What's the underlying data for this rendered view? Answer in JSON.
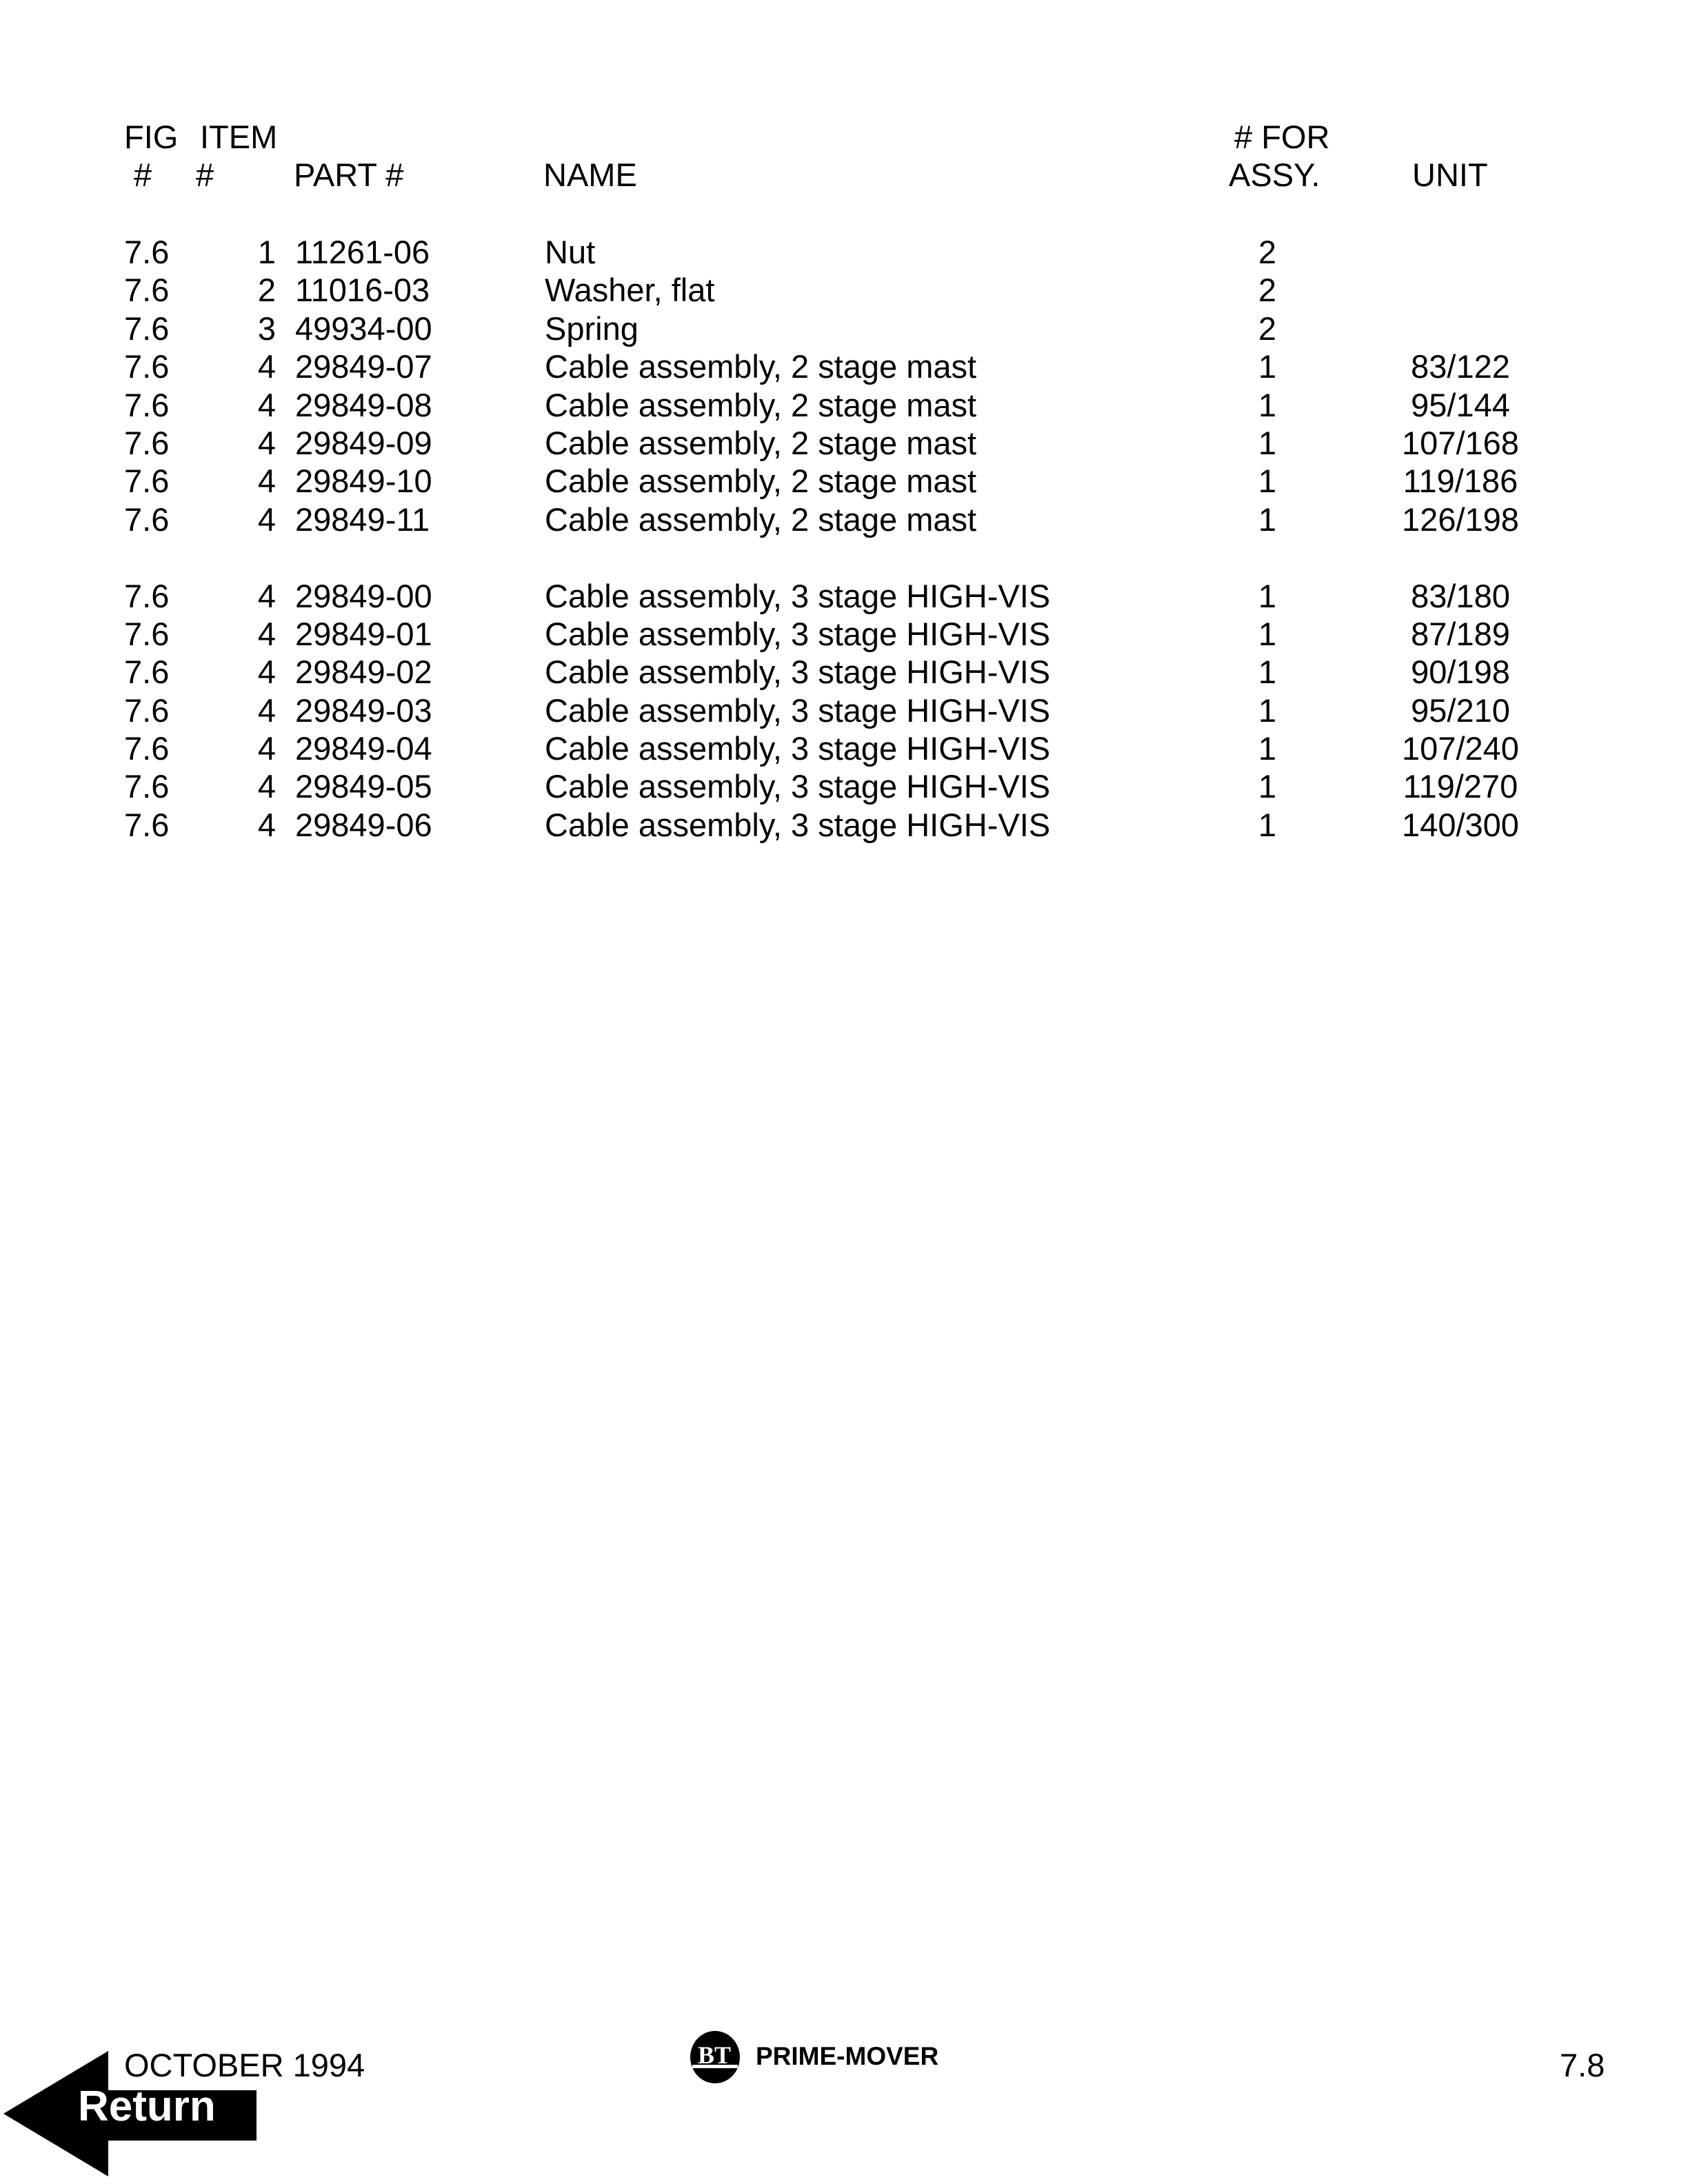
{
  "header": {
    "fig_line1": "FIG",
    "fig_line2": "#",
    "item_line1": "ITEM",
    "item_line2": "#",
    "part": "PART #",
    "name": "NAME",
    "qty_line1": "# FOR",
    "qty_line2": "ASSY.",
    "unit": "UNIT"
  },
  "groups": [
    [
      {
        "fig": "7.6",
        "item": "1",
        "part": "11261-06",
        "name": "Nut",
        "qty": "2",
        "unit": ""
      },
      {
        "fig": "7.6",
        "item": "2",
        "part": "11016-03",
        "name": "Washer, flat",
        "qty": "2",
        "unit": ""
      },
      {
        "fig": "7.6",
        "item": "3",
        "part": "49934-00",
        "name": "Spring",
        "qty": "2",
        "unit": ""
      },
      {
        "fig": "7.6",
        "item": "4",
        "part": "29849-07",
        "name": "Cable assembly, 2 stage mast",
        "qty": "1",
        "unit": "83/122"
      },
      {
        "fig": "7.6",
        "item": "4",
        "part": "29849-08",
        "name": "Cable assembly, 2 stage mast",
        "qty": "1",
        "unit": "95/144"
      },
      {
        "fig": "7.6",
        "item": "4",
        "part": "29849-09",
        "name": "Cable assembly, 2 stage mast",
        "qty": "1",
        "unit": "107/168"
      },
      {
        "fig": "7.6",
        "item": "4",
        "part": "29849-10",
        "name": "Cable assembly, 2 stage mast",
        "qty": "1",
        "unit": "119/186"
      },
      {
        "fig": "7.6",
        "item": "4",
        "part": "29849-11",
        "name": "Cable assembly, 2 stage mast",
        "qty": "1",
        "unit": "126/198"
      }
    ],
    [
      {
        "fig": "7.6",
        "item": "4",
        "part": "29849-00",
        "name": "Cable assembly, 3 stage HIGH-VIS",
        "qty": "1",
        "unit": "83/180"
      },
      {
        "fig": "7.6",
        "item": "4",
        "part": "29849-01",
        "name": "Cable assembly, 3 stage HIGH-VIS",
        "qty": "1",
        "unit": "87/189"
      },
      {
        "fig": "7.6",
        "item": "4",
        "part": "29849-02",
        "name": "Cable assembly, 3 stage HIGH-VIS",
        "qty": "1",
        "unit": "90/198"
      },
      {
        "fig": "7.6",
        "item": "4",
        "part": "29849-03",
        "name": "Cable assembly, 3 stage HIGH-VIS",
        "qty": "1",
        "unit": "95/210"
      },
      {
        "fig": "7.6",
        "item": "4",
        "part": "29849-04",
        "name": "Cable assembly, 3 stage HIGH-VIS",
        "qty": "1",
        "unit": "107/240"
      },
      {
        "fig": "7.6",
        "item": "4",
        "part": "29849-05",
        "name": "Cable assembly, 3 stage HIGH-VIS",
        "qty": "1",
        "unit": "119/270"
      },
      {
        "fig": "7.6",
        "item": "4",
        "part": "29849-06",
        "name": "Cable assembly, 3 stage HIGH-VIS",
        "qty": "1",
        "unit": "140/300"
      }
    ]
  ],
  "footer": {
    "date": "OCTOBER 1994",
    "logo_mark": "BT",
    "brand": "PRIME-MOVER",
    "page_number": "7.8",
    "return_label": "Return",
    "return_icon": "left-arrow-icon"
  }
}
